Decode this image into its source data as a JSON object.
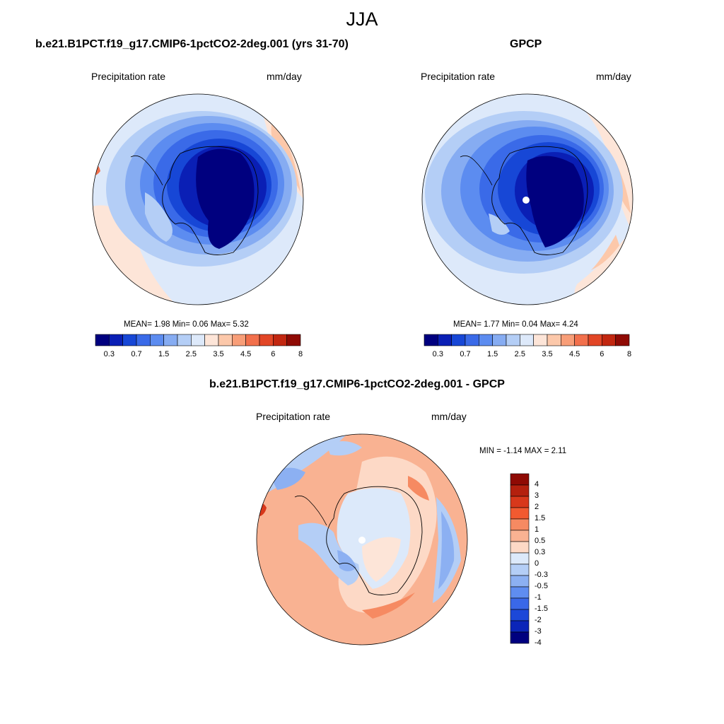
{
  "figure": {
    "title": "JJA"
  },
  "panels": [
    {
      "id": "model",
      "title": "b.e21.B1PCT.f19_g17.CMIP6-1pctCO2-2deg.001 (yrs 31-70)",
      "left_label": "Precipitation rate",
      "right_label": "mm/day",
      "stats": "MEAN=   1.98  Min=   0.06  Max=   5.32"
    },
    {
      "id": "obs",
      "title": "GPCP",
      "left_label": "Precipitation rate",
      "right_label": "mm/day",
      "stats": "MEAN=   1.77  Min=   0.04  Max=   4.24"
    },
    {
      "id": "diff",
      "title": "b.e21.B1PCT.f19_g17.CMIP6-1pctCO2-2deg.001 - GPCP",
      "left_label": "Precipitation rate",
      "right_label": "mm/day",
      "stats": "MIN =  -1.14 MAX =   2.11"
    }
  ],
  "colorbars": {
    "abs": {
      "colors": [
        "#00007f",
        "#0a1fb5",
        "#1747d6",
        "#3a6ae8",
        "#5c8cf0",
        "#86acf2",
        "#b4cef6",
        "#dde9fa",
        "#fde5d8",
        "#fcc8aa",
        "#f89e78",
        "#f2704c",
        "#e24626",
        "#c22710",
        "#8f0a04"
      ],
      "labels": [
        "0.3",
        "0.7",
        "1.5",
        "2.5",
        "3.5",
        "4.5",
        "6",
        "8"
      ]
    },
    "diff": {
      "colors": [
        "#8f0a04",
        "#b4200e",
        "#d8381b",
        "#f25a30",
        "#f68a62",
        "#f9b292",
        "#fdd9c6",
        "#dce9fa",
        "#b4cef6",
        "#8cb0f2",
        "#5f8df0",
        "#3a68e8",
        "#1c48d8",
        "#0b25b8",
        "#00007f"
      ],
      "labels": [
        "4",
        "3",
        "2",
        "1.5",
        "1",
        "0.5",
        "0.3",
        "0",
        "-0.3",
        "-0.5",
        "-1",
        "-1.5",
        "-2",
        "-3",
        "-4"
      ]
    }
  }
}
